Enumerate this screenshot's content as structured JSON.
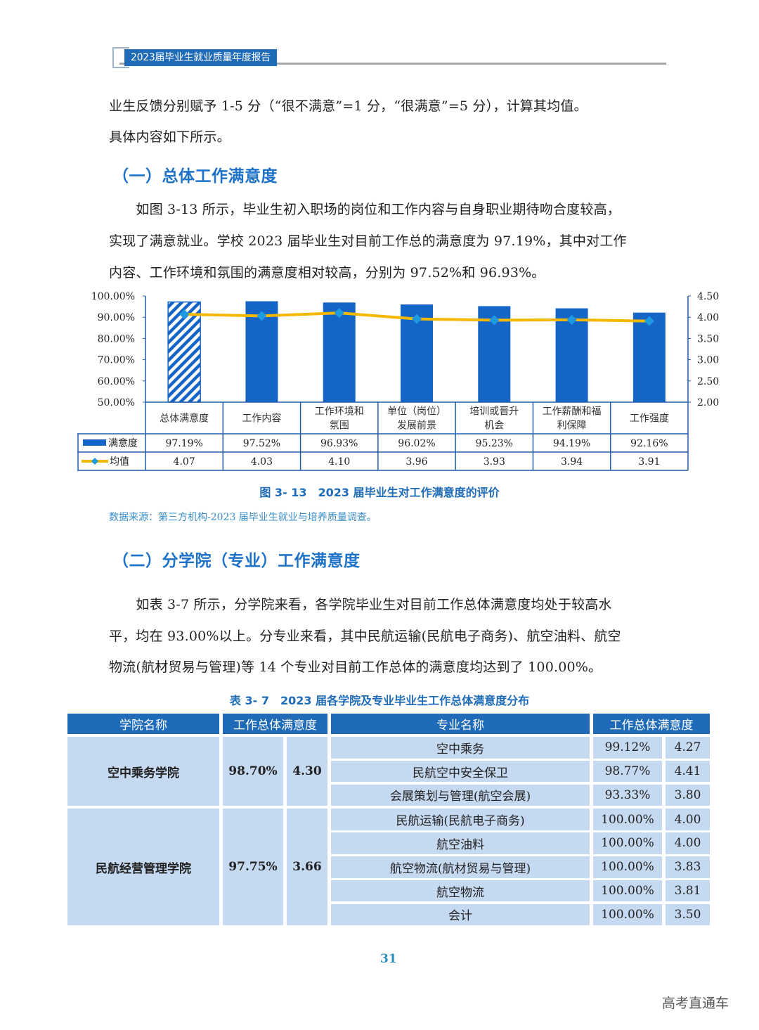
{
  "header": {
    "title": "2023届毕业生就业质量年度报告"
  },
  "intro": {
    "line1": "业生反馈分别赋予 1-5 分（“很不满意”=1 分，“很满意”=5 分），计算其均值。",
    "line2": "具体内容如下所示。"
  },
  "section1": {
    "heading": "（一）总体工作满意度",
    "para": [
      "　　如图 3-13 所示，毕业生初入职场的岗位和工作内容与自身职业期待吻合度较高，",
      "实现了满意就业。学校 2023 届毕业生对目前工作总的满意度为 97.19%，其中对工作",
      "内容、工作环境和氛围的满意度相对较高，分别为 97.52%和 96.93%。"
    ]
  },
  "chart_data": {
    "type": "bar",
    "title": "图 3- 13　2023 届毕业生对工作满意度的评价",
    "categories": [
      "总体满意度",
      "工作内容",
      "工作环境和氛围",
      "单位（岗位）发展前景",
      "培训或晋升机会",
      "工作薪酬和福利保障",
      "工作强度"
    ],
    "category_lines": [
      [
        "总体满意度"
      ],
      [
        "工作内容"
      ],
      [
        "工作环境和",
        "氛围"
      ],
      [
        "单位（岗位）",
        "发展前景"
      ],
      [
        "培训或晋升",
        "机会"
      ],
      [
        "工作薪酬和福",
        "利保障"
      ],
      [
        "工作强度"
      ]
    ],
    "series": [
      {
        "name": "满意度",
        "type": "bar",
        "axis": "left",
        "color": "#1565c6",
        "values": [
          97.19,
          97.52,
          96.93,
          96.02,
          95.23,
          94.19,
          92.16
        ],
        "labels": [
          "97.19%",
          "97.52%",
          "96.93%",
          "96.02%",
          "95.23%",
          "94.19%",
          "92.16%"
        ]
      },
      {
        "name": "均值",
        "type": "line",
        "axis": "right",
        "color": "#f5b800",
        "marker_color": "#1e9be0",
        "values": [
          4.07,
          4.03,
          4.1,
          3.96,
          3.93,
          3.94,
          3.91
        ],
        "labels": [
          "4.07",
          "4.03",
          "4.10",
          "3.96",
          "3.93",
          "3.94",
          "3.91"
        ]
      }
    ],
    "y_left": {
      "ticks": [
        "100.00%",
        "90.00%",
        "80.00%",
        "70.00%",
        "60.00%",
        "50.00%"
      ],
      "range": [
        50,
        100
      ]
    },
    "y_right": {
      "ticks": [
        "4.50",
        "4.00",
        "3.50",
        "3.00",
        "2.50",
        "2.00"
      ],
      "range": [
        2.0,
        4.5
      ]
    },
    "first_bar_hatched": true,
    "legend_position": "data-table"
  },
  "figure": {
    "caption": "图 3- 13　2023 届毕业生对工作满意度的评价",
    "source": "数据来源：第三方机构-2023 届毕业生就业与培养质量调查。"
  },
  "section2": {
    "heading": "（二）分学院（专业）工作满意度",
    "para": [
      "　　如表 3-7 所示，分学院来看，各学院毕业生对目前工作总体满意度均处于较高水",
      "平，均在 93.00%以上。分专业来看，其中民航运输(民航电子商务)、航空油料、航空",
      "物流(航材贸易与管理)等 14 个专业对目前工作总体的满意度均达到了 100.00%。"
    ]
  },
  "table": {
    "caption": "表 3- 7　2023 届各学院及专业毕业生工作总体满意度分布",
    "headers": [
      "学院名称",
      "工作总体满意度",
      "专业名称",
      "工作总体满意度"
    ],
    "colleges": [
      {
        "name": "空中乘务学院",
        "rate": "98.70%",
        "mean": "4.30",
        "majors": [
          {
            "name": "空中乘务",
            "rate": "99.12%",
            "mean": "4.27"
          },
          {
            "name": "民航空中安全保卫",
            "rate": "98.77%",
            "mean": "4.41"
          },
          {
            "name": "会展策划与管理(航空会展)",
            "rate": "93.33%",
            "mean": "3.80"
          }
        ]
      },
      {
        "name": "民航经营管理学院",
        "rate": "97.75%",
        "mean": "3.66",
        "majors": [
          {
            "name": "民航运输(民航电子商务)",
            "rate": "100.00%",
            "mean": "4.00"
          },
          {
            "name": "航空油料",
            "rate": "100.00%",
            "mean": "4.00"
          },
          {
            "name": "航空物流(航材贸易与管理)",
            "rate": "100.00%",
            "mean": "3.83"
          },
          {
            "name": "航空物流",
            "rate": "100.00%",
            "mean": "3.81"
          },
          {
            "name": "会计",
            "rate": "100.00%",
            "mean": "3.50"
          }
        ]
      }
    ]
  },
  "footer": {
    "page_number": "31",
    "watermark": "高考直通车"
  }
}
